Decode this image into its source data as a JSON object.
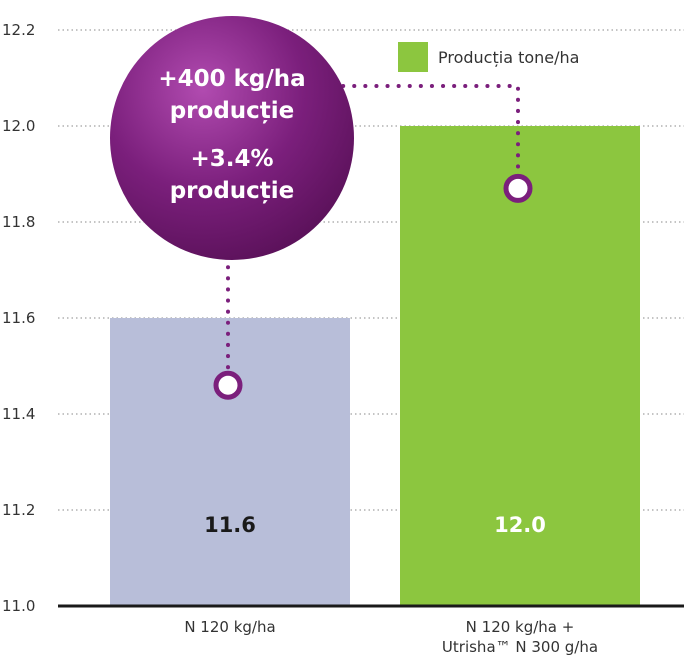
{
  "chart_data": {
    "type": "bar",
    "categories": [
      "N 120 kg/ha",
      "N 120 kg/ha + Utrisha™ N 300 g/ha"
    ],
    "category_lines": [
      [
        "N 120 kg/ha"
      ],
      [
        "N 120 kg/ha +",
        "Utrisha™ N 300 g/ha"
      ]
    ],
    "series": [
      {
        "name": "Producția tone/ha",
        "values": [
          11.6,
          12.0
        ]
      }
    ],
    "bar_labels": [
      "11.6",
      "12.0"
    ],
    "ylim": [
      11.0,
      12.2
    ],
    "yticks": [
      "11.0",
      "11.2",
      "11.4",
      "11.6",
      "11.8",
      "12.0",
      "12.2"
    ],
    "bar_colors": [
      "#b8bed9",
      "#8cc63f"
    ],
    "bar_label_colors": [
      "#1a1a1a",
      "#ffffff"
    ],
    "legend_color": "#8cc63f",
    "legend_position": "top-right",
    "grid": true,
    "annotation": {
      "lines": [
        "+400 kg/ha",
        "producție",
        "+3.4%",
        "producție"
      ],
      "color": "#7b1f7c",
      "dot_values": [
        11.46,
        11.87
      ]
    }
  }
}
